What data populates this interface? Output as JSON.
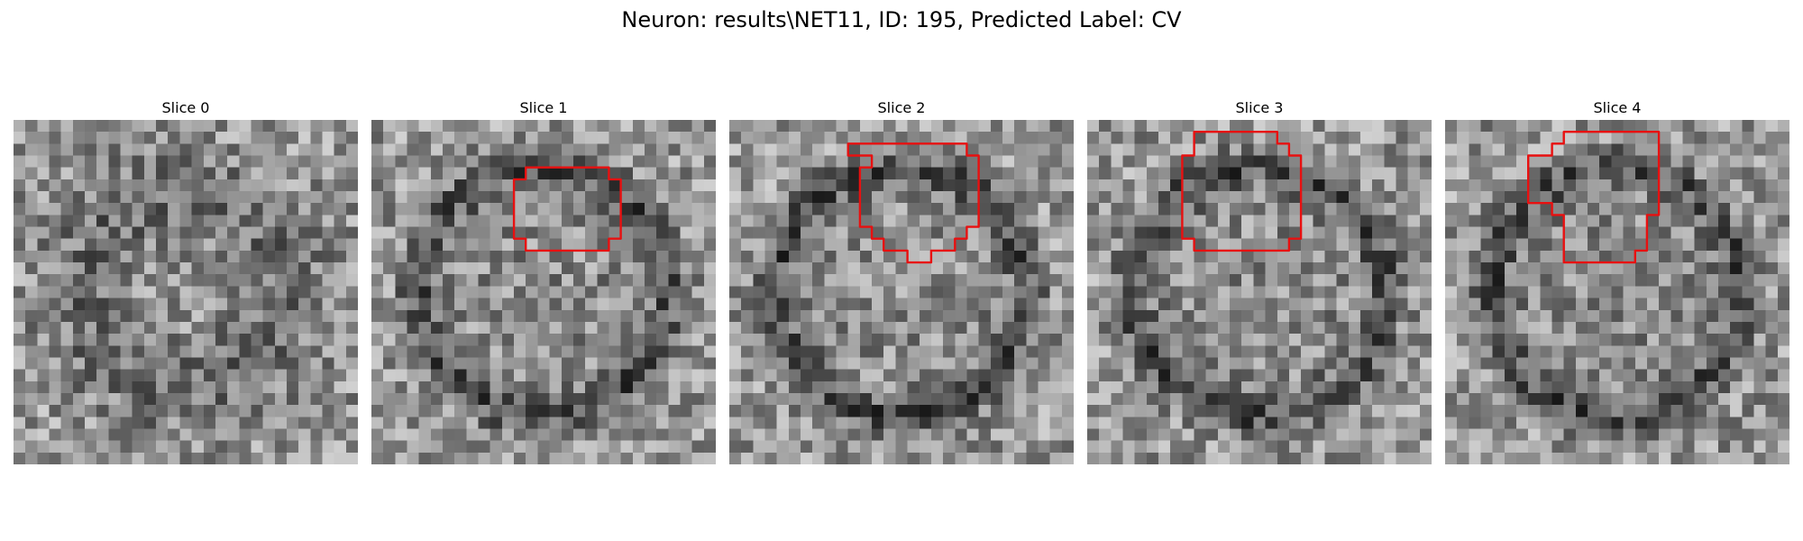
{
  "figure": {
    "title": "Neuron: results\\NET11, ID: 195, Predicted Label: CV",
    "contour_color": "#e81010"
  },
  "slices": [
    {
      "label": "Slice 0",
      "contour": null
    },
    {
      "label": "Slice 1",
      "contour": [
        [
          13,
          4
        ],
        [
          20,
          4
        ],
        [
          20,
          5
        ],
        [
          21,
          5
        ],
        [
          21,
          10
        ],
        [
          20,
          10
        ],
        [
          20,
          11
        ],
        [
          13,
          11
        ],
        [
          13,
          10
        ],
        [
          12,
          10
        ],
        [
          12,
          5
        ],
        [
          13,
          5
        ]
      ]
    },
    {
      "label": "Slice 2",
      "contour": [
        [
          10,
          2
        ],
        [
          20,
          2
        ],
        [
          20,
          3
        ],
        [
          21,
          3
        ],
        [
          21,
          9
        ],
        [
          20,
          9
        ],
        [
          20,
          10
        ],
        [
          19,
          10
        ],
        [
          19,
          11
        ],
        [
          18,
          11
        ],
        [
          17,
          11
        ],
        [
          17,
          12
        ],
        [
          15,
          12
        ],
        [
          15,
          11
        ],
        [
          13,
          11
        ],
        [
          13,
          10
        ],
        [
          12,
          10
        ],
        [
          12,
          9
        ],
        [
          11,
          9
        ],
        [
          11,
          4
        ],
        [
          12,
          4
        ],
        [
          12,
          3
        ],
        [
          10,
          3
        ]
      ]
    },
    {
      "label": "Slice 3",
      "contour": [
        [
          9,
          1
        ],
        [
          16,
          1
        ],
        [
          16,
          2
        ],
        [
          17,
          2
        ],
        [
          17,
          3
        ],
        [
          18,
          3
        ],
        [
          18,
          10
        ],
        [
          17,
          10
        ],
        [
          17,
          11
        ],
        [
          9,
          11
        ],
        [
          9,
          10
        ],
        [
          8,
          10
        ],
        [
          8,
          3
        ],
        [
          9,
          3
        ],
        [
          9,
          2
        ]
      ]
    },
    {
      "label": "Slice 4",
      "contour": [
        [
          10,
          1
        ],
        [
          18,
          1
        ],
        [
          18,
          8
        ],
        [
          17,
          8
        ],
        [
          17,
          11
        ],
        [
          16,
          11
        ],
        [
          16,
          12
        ],
        [
          10,
          12
        ],
        [
          10,
          8
        ],
        [
          9,
          8
        ],
        [
          9,
          7
        ],
        [
          7,
          7
        ],
        [
          7,
          3
        ],
        [
          9,
          3
        ],
        [
          9,
          2
        ],
        [
          10,
          2
        ]
      ]
    }
  ]
}
